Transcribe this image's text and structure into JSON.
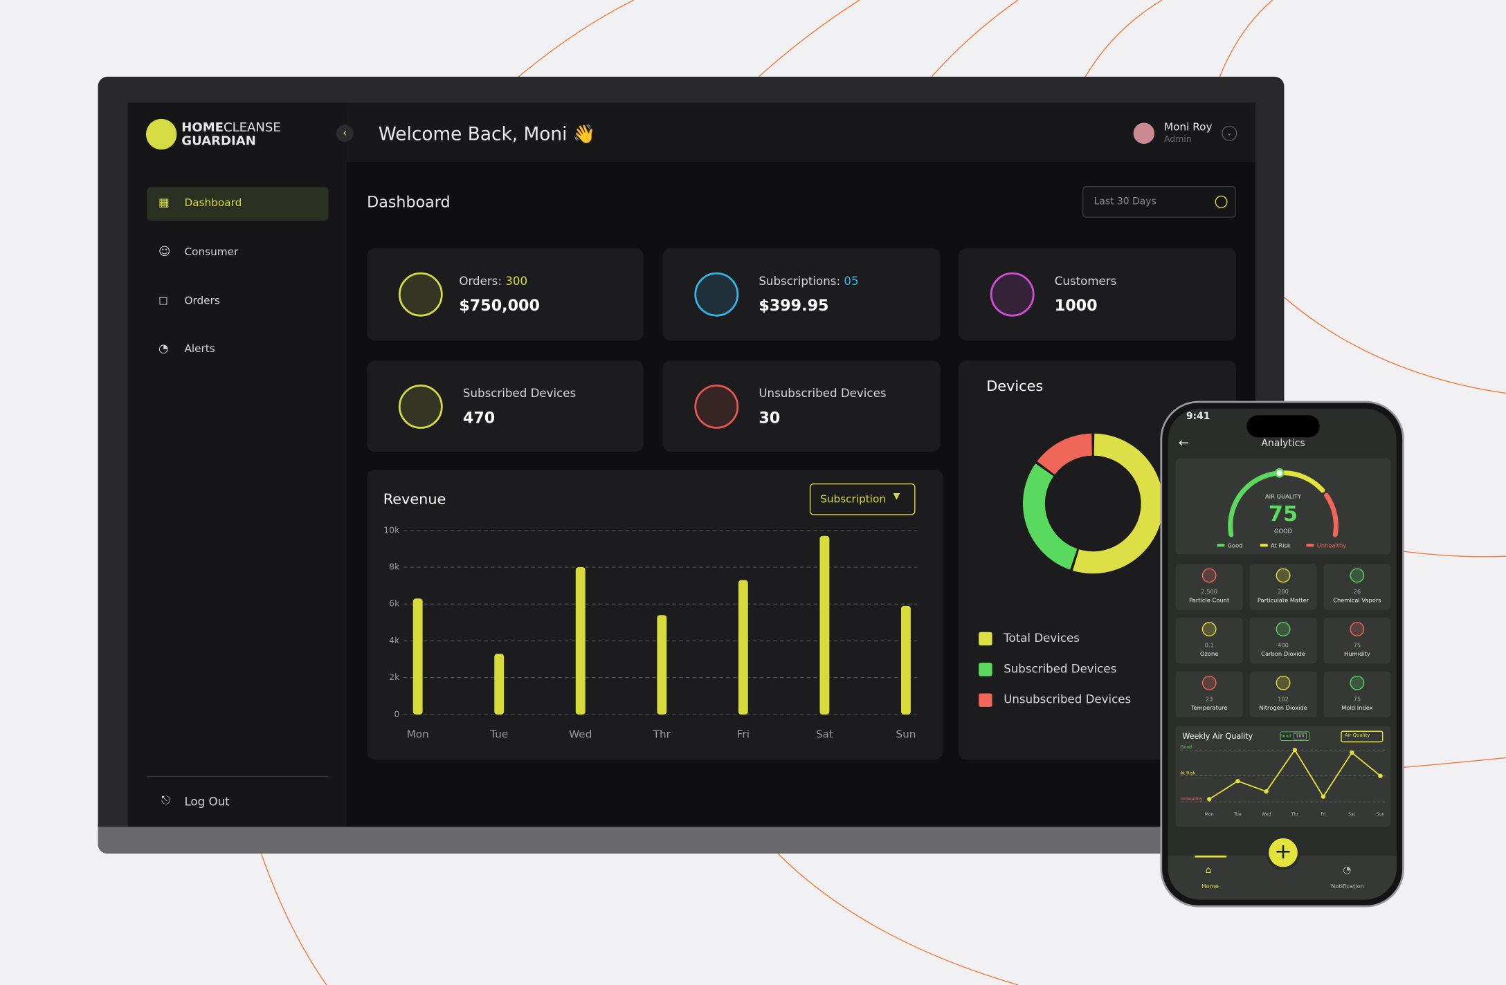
{
  "brand": {
    "home": "HOME",
    "cleanse": "CLEANSE",
    "guardian": "GUARDIAN"
  },
  "header": {
    "welcome": "Welcome Back, Moni 👋",
    "user_name": "Moni Roy",
    "user_role": "Admin"
  },
  "nav": [
    "Dashboard",
    "Consumer",
    "Orders",
    "Alerts"
  ],
  "logout": "Log Out",
  "page_title": "Dashboard",
  "range": "Last 30 Days",
  "cards": [
    {
      "label": "Orders:",
      "count": "300",
      "value": "$750,000"
    },
    {
      "label": "Subscriptions:",
      "count": "05",
      "value": "$399.95"
    },
    {
      "label": "Customers",
      "value": "1000"
    },
    {
      "label": "Subscribed Devices",
      "value": "470"
    },
    {
      "label": "Unsubscribed Devices",
      "value": "30"
    }
  ],
  "chart_data": [
    {
      "type": "bar",
      "title": "Revenue",
      "filter": "Subscription",
      "categories": [
        "Mon",
        "Tue",
        "Wed",
        "Thr",
        "Fri",
        "Sat",
        "Sun"
      ],
      "values": [
        6300,
        3300,
        8000,
        5400,
        7300,
        9700,
        5900
      ],
      "color": "#d8dc3a",
      "ylim": [
        0,
        10000
      ],
      "yticks": [
        0,
        {
          "value": 2000,
          "label": "2k"
        },
        {
          "value": 4000,
          "label": "4k"
        },
        {
          "value": 6000,
          "label": "6k"
        },
        {
          "value": 8000,
          "label": "8k"
        },
        {
          "value": 10000,
          "label": "10k"
        }
      ],
      "grid": true
    },
    {
      "type": "pie",
      "title": "Devices",
      "categories": [
        "Total Devices",
        "Subscribed Devices",
        "Unsubscribed Devices"
      ],
      "values": [
        55,
        30,
        15
      ],
      "colors": [
        "#dcdf45",
        "#5ad95f",
        "#f0675a"
      ]
    },
    {
      "type": "line",
      "title": "Weekly Air Quality",
      "filter": "Air Quality",
      "categories": [
        "Mon",
        "Tue",
        "Wed",
        "Thr",
        "Fri",
        "Sat",
        "Sun"
      ],
      "values": [
        5,
        40,
        20,
        100,
        10,
        95,
        50
      ],
      "color": "#e2e43c",
      "ylim": [
        0,
        100
      ],
      "yticks": [
        {
          "value": 100,
          "label": "Good"
        },
        {
          "value": 50,
          "label": "At Risk"
        },
        {
          "value": 0,
          "label": "Unhealthy"
        }
      ],
      "tooltip": {
        "label": "Good",
        "value": 100
      }
    }
  ],
  "phone": {
    "time": "9:41",
    "title": "Analytics",
    "gauge": {
      "label": "AIR QUALITY",
      "value": 75,
      "status": "GOOD",
      "legend": [
        "Good",
        "At Risk",
        "Unhealthy"
      ]
    },
    "sensors": [
      {
        "value": "2,500",
        "label": "Particle Count"
      },
      {
        "value": "200",
        "label": "Particulate Matter"
      },
      {
        "value": "26",
        "label": "Chemical Vapors"
      },
      {
        "value": "0.1",
        "label": "Ozone"
      },
      {
        "value": "400",
        "label": "Carbon Dioxide"
      },
      {
        "value": "75",
        "label": "Humidity"
      },
      {
        "value": "23",
        "label": "Temperature"
      },
      {
        "value": "102",
        "label": "Nitrogen Dioxide"
      },
      {
        "value": "75",
        "label": "Mold Index"
      }
    ],
    "tabs": [
      "Home",
      "Notification"
    ]
  }
}
